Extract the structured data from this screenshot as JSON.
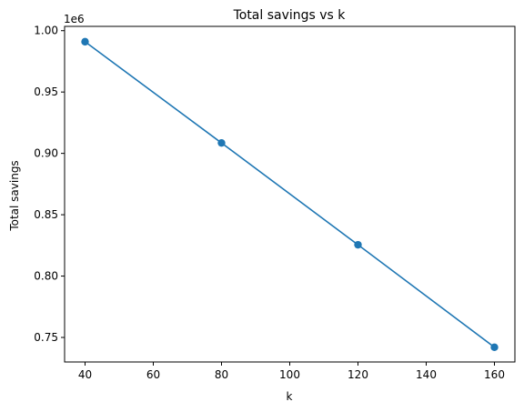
{
  "chart_data": {
    "type": "line",
    "title": "Total savings vs k",
    "xlabel": "k",
    "ylabel": "Total savings",
    "y_offset_label": "1e6",
    "x": [
      40,
      80,
      120,
      160
    ],
    "series": [
      {
        "values": [
          991000,
          908500,
          825500,
          742000
        ],
        "color": "#1f77b4",
        "marker": "circle"
      }
    ],
    "xlim": [
      34,
      166
    ],
    "ylim": [
      730000,
      1003500
    ],
    "xticks": [
      40,
      60,
      80,
      100,
      120,
      140,
      160
    ],
    "xtick_labels": [
      "40",
      "60",
      "80",
      "100",
      "120",
      "140",
      "160"
    ],
    "yticks": [
      750000,
      800000,
      850000,
      900000,
      950000,
      1000000
    ],
    "ytick_labels": [
      "0.75",
      "0.80",
      "0.85",
      "0.90",
      "0.95",
      "1.00"
    ],
    "grid": false,
    "legend": false
  }
}
